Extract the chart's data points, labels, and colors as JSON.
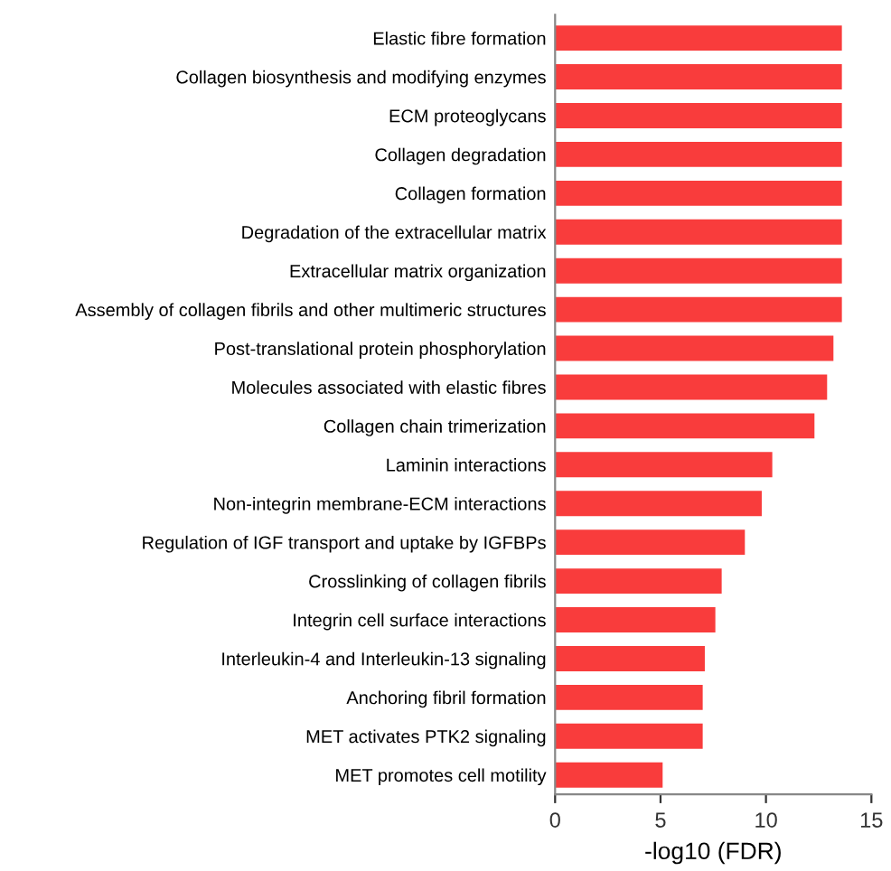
{
  "chart_data": {
    "type": "bar",
    "orientation": "horizontal",
    "xlabel": "-log10 (FDR)",
    "categories": [
      "Elastic fibre formation",
      "Collagen biosynthesis and modifying enzymes",
      "ECM proteoglycans",
      "Collagen degradation",
      "Collagen formation",
      "Degradation of the extracellular matrix",
      "Extracellular matrix organization",
      "Assembly of collagen fibrils and other multimeric structures",
      "Post-translational protein phosphorylation",
      "Molecules associated with elastic fibres",
      "Collagen chain trimerization",
      "Laminin interactions",
      "Non-integrin membrane-ECM interactions",
      "Regulation of IGF transport and uptake by IGFBPs",
      "Crosslinking of collagen fibrils",
      "Integrin cell surface interactions",
      "Interleukin-4 and Interleukin-13 signaling",
      "Anchoring fibril formation",
      "MET activates PTK2 signaling",
      "MET promotes cell motility"
    ],
    "values": [
      13.6,
      13.6,
      13.6,
      13.6,
      13.6,
      13.6,
      13.6,
      13.6,
      13.2,
      12.9,
      12.3,
      10.3,
      9.8,
      9.0,
      7.9,
      7.6,
      7.1,
      7.0,
      7.0,
      5.1
    ],
    "color": "#f93c3c",
    "xlim": [
      0,
      15
    ],
    "xticks": [
      0,
      5,
      10,
      15
    ],
    "grid": false,
    "legend": false
  }
}
